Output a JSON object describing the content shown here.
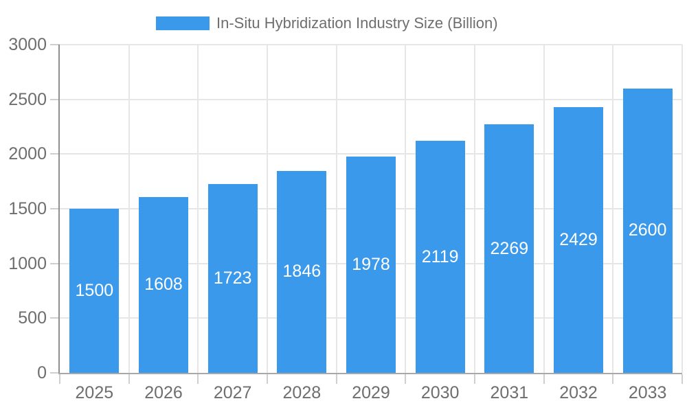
{
  "chart_data": {
    "type": "bar",
    "title": "In-Situ Hybridization Industry Size (Billion)",
    "legend": {
      "label": "In-Situ Hybridization Industry Size (Billion)",
      "position": "top"
    },
    "categories": [
      "2025",
      "2026",
      "2027",
      "2028",
      "2029",
      "2030",
      "2031",
      "2032",
      "2033"
    ],
    "series": [
      {
        "name": "In-Situ Hybridization Industry Size (Billion)",
        "values": [
          1500,
          1608,
          1723,
          1846,
          1978,
          2119,
          2269,
          2429,
          2600
        ]
      }
    ],
    "xlabel": "",
    "ylabel": "",
    "ylim": [
      0,
      3000
    ],
    "y_interval": 500,
    "y_ticks": [
      0,
      500,
      1000,
      1500,
      2000,
      2500,
      3000
    ],
    "grid": true,
    "value_labels": "inside-center",
    "colors": {
      "bar": "#3b99ec",
      "text": "#6e6e6e",
      "value_label": "#ffffff",
      "grid": "#e6e6e6",
      "tick": "#cfcfcf",
      "axis_y_line": "#8f8f8f",
      "axis_x_line": "#a8a8a8",
      "background": "#ffffff"
    }
  }
}
